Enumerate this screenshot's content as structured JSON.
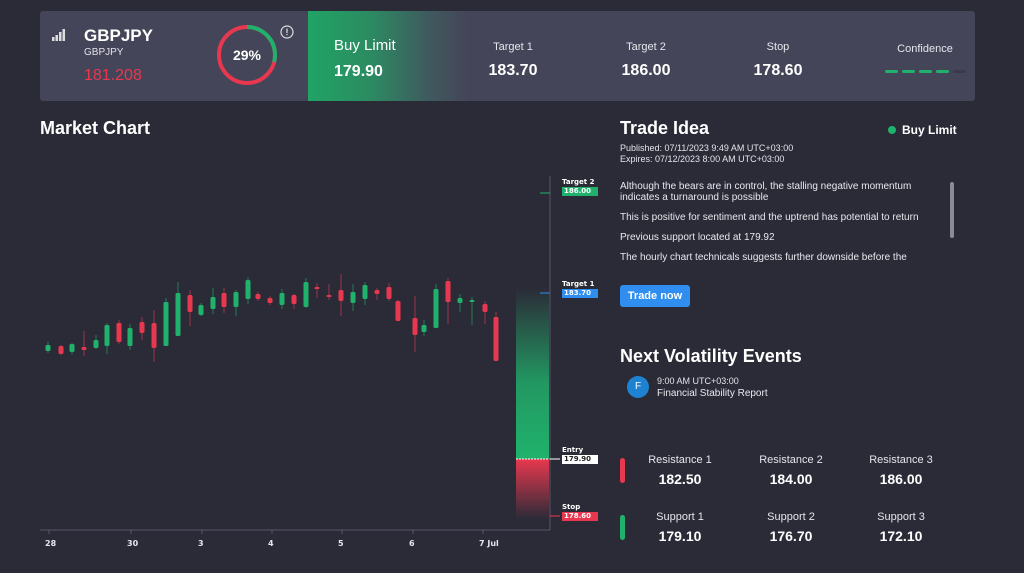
{
  "header": {
    "symbol": "GBPJPY",
    "symbol_sub": "GBPJPY",
    "price": "181.208",
    "gauge_percent": "29%",
    "gauge_value": 29,
    "order_type": "Buy Limit",
    "entry": "179.90",
    "stats": [
      {
        "label": "Target 1",
        "value": "183.70"
      },
      {
        "label": "Target 2",
        "value": "186.00"
      },
      {
        "label": "Stop",
        "value": "178.60"
      }
    ],
    "confidence_label": "Confidence",
    "confidence_level": 4,
    "confidence_max": 5
  },
  "market_chart": {
    "title": "Market Chart",
    "x_ticks": [
      "28",
      "30",
      "3",
      "4",
      "5",
      "6",
      "7 Jul"
    ],
    "levels": {
      "target2": {
        "label": "Target 2",
        "value": "186.00"
      },
      "target1": {
        "label": "Target 1",
        "value": "183.70"
      },
      "entry": {
        "label": "Entry",
        "value": "179.90"
      },
      "stop": {
        "label": "Stop",
        "value": "178.60"
      }
    }
  },
  "trade_idea": {
    "title": "Trade Idea",
    "badge": "Buy Limit",
    "published": "Published: 07/11/2023 9:49 AM UTC+03:00",
    "expires": "Expires: 07/12/2023 8:00 AM UTC+03:00",
    "paragraphs": [
      "Although the bears are in control, the stalling negative momentum indicates a turnaround is possible",
      "This is positive for sentiment and the uptrend has potential to return",
      "Previous support located at 179.92",
      "The hourly chart technicals suggests further downside before the"
    ],
    "button": "Trade now"
  },
  "volatility": {
    "title": "Next Volatility Events",
    "events": [
      {
        "icon_letter": "F",
        "time": "9:00 AM UTC+03:00",
        "name": "Financial Stability Report"
      }
    ]
  },
  "levels": {
    "resistance": [
      {
        "label": "Resistance 1",
        "value": "182.50"
      },
      {
        "label": "Resistance 2",
        "value": "184.00"
      },
      {
        "label": "Resistance 3",
        "value": "186.00"
      }
    ],
    "support": [
      {
        "label": "Support 1",
        "value": "179.10"
      },
      {
        "label": "Support 2",
        "value": "176.70"
      },
      {
        "label": "Support 3",
        "value": "172.10"
      }
    ]
  },
  "colors": {
    "bull": "#20b26c",
    "bear": "#e8384f",
    "accent": "#2f8ef0",
    "panel": "#454559",
    "background": "#2b2b37"
  }
}
